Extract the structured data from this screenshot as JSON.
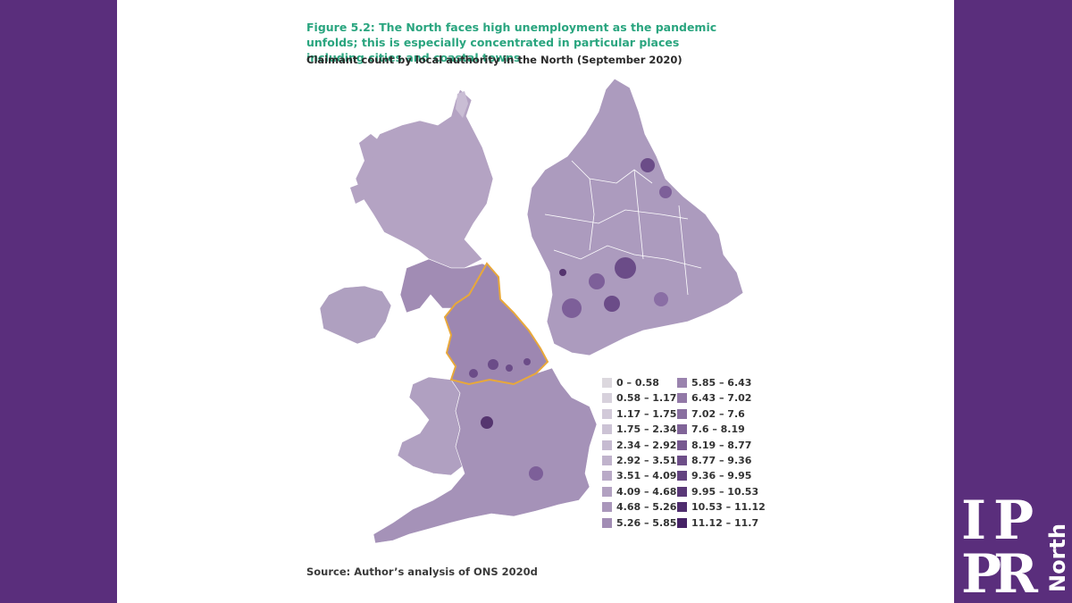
{
  "figure": {
    "title": "Figure 5.2: The North faces high unemployment as the pandemic unfolds; this is especially concentrated in particular places including cities and coastal towns",
    "subtitle": "Claimant count by local authority in the North (September 2020)",
    "source": "Source: Author’s analysis of ONS 2020d"
  },
  "legend": {
    "items": [
      {
        "label": "0 – 0.58",
        "color": "#dcd8de"
      },
      {
        "label": "0.58 – 1.17",
        "color": "#d7d1dc"
      },
      {
        "label": "1.17 – 1.75",
        "color": "#d2cad9"
      },
      {
        "label": "1.75 – 2.34",
        "color": "#ccc3d5"
      },
      {
        "label": "2.34 – 2.92",
        "color": "#c6bbd1"
      },
      {
        "label": "2.92 – 3.51",
        "color": "#c0b3cc"
      },
      {
        "label": "3.51 – 4.09",
        "color": "#b9aac7"
      },
      {
        "label": "4.09 – 4.68",
        "color": "#b2a1c1"
      },
      {
        "label": "4.68 – 5.26",
        "color": "#aa97bb"
      },
      {
        "label": "5.26 – 5.85",
        "color": "#a28db5"
      },
      {
        "label": "5.85 – 6.43",
        "color": "#9a83ae"
      },
      {
        "label": "6.43 – 7.02",
        "color": "#9279a7"
      },
      {
        "label": "7.02 – 7.6",
        "color": "#896fa0"
      },
      {
        "label": "7.6 – 8.19",
        "color": "#806498"
      },
      {
        "label": "8.19 – 8.77",
        "color": "#775990"
      },
      {
        "label": "8.77 – 9.36",
        "color": "#6d4e88"
      },
      {
        "label": "9.36 – 9.95",
        "color": "#634380"
      },
      {
        "label": "9.95 – 10.53",
        "color": "#593877"
      },
      {
        "label": "10.53 – 11.12",
        "color": "#4f2d6e"
      },
      {
        "label": "11.12 – 11.7",
        "color": "#452265"
      }
    ]
  },
  "colors": {
    "brand_purple": "#5a2e7c",
    "title_green": "#2aa57f",
    "north_outline": "#e8a83a",
    "map_base": "#a996bb"
  },
  "logo": {
    "letters": [
      "I",
      "P",
      "P",
      "R"
    ],
    "word": "North"
  }
}
